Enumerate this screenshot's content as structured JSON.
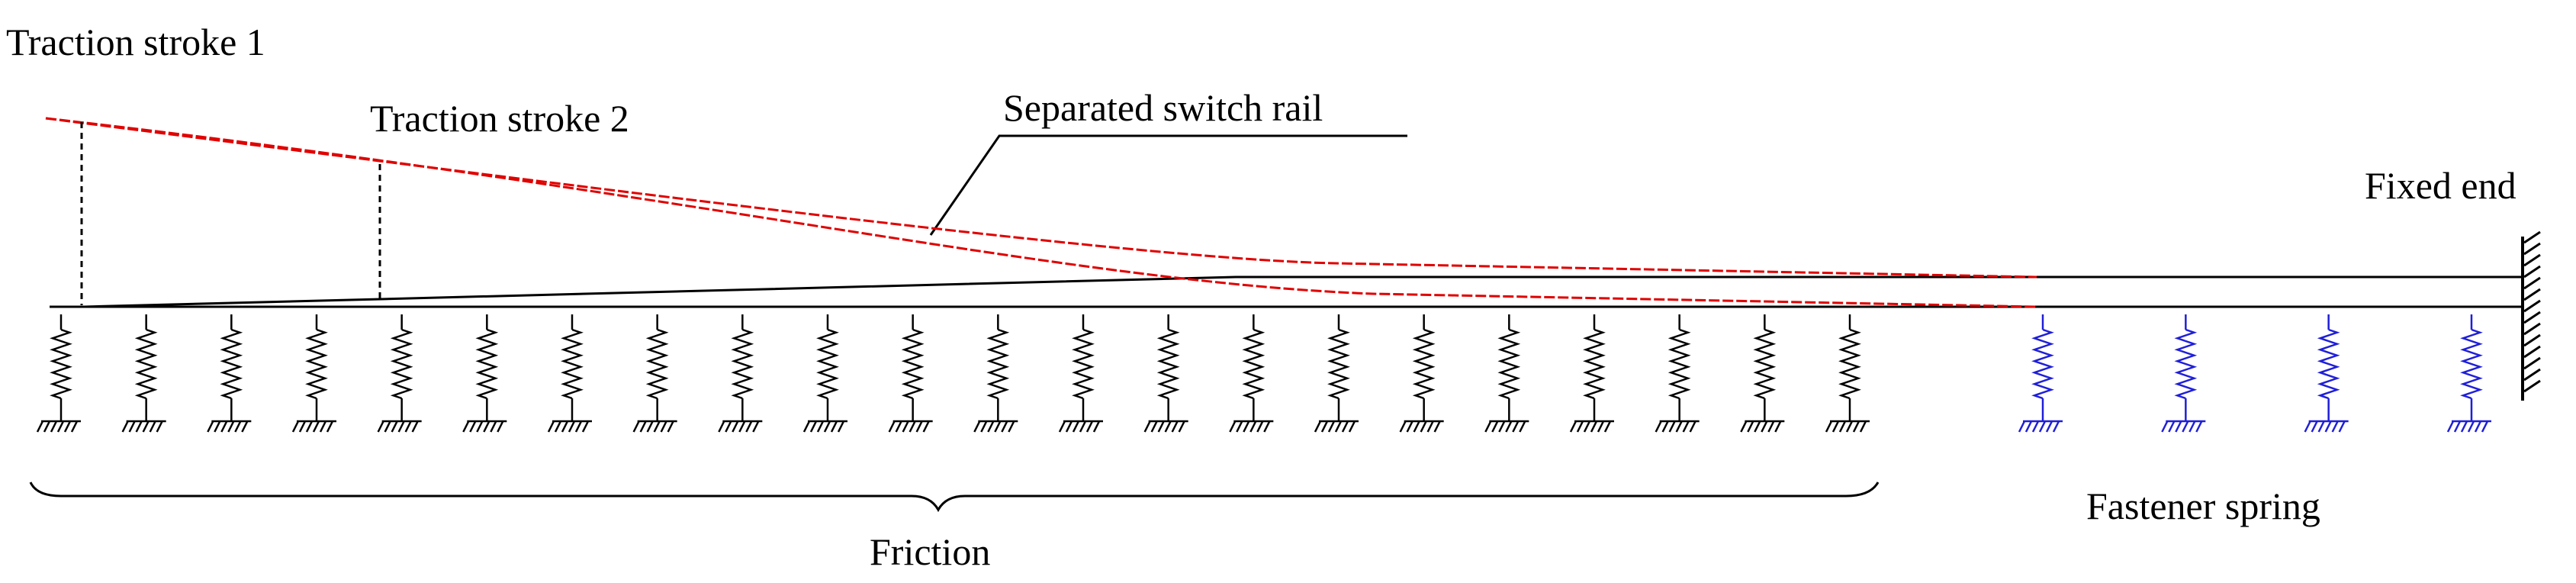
{
  "labels": {
    "traction_stroke_1": "Traction stroke 1",
    "traction_stroke_2": "Traction stroke 2",
    "separated_switch_rail": "Separated switch rail",
    "fixed_end": "Fixed end",
    "friction": "Friction",
    "fastener_spring": "Fastener spring"
  },
  "springs": {
    "friction_count": 22,
    "fastener_count": 4
  },
  "colors": {
    "structure": "#000000",
    "displaced_rail": "#e00000",
    "fastener_spring": "#1f1fd8"
  }
}
